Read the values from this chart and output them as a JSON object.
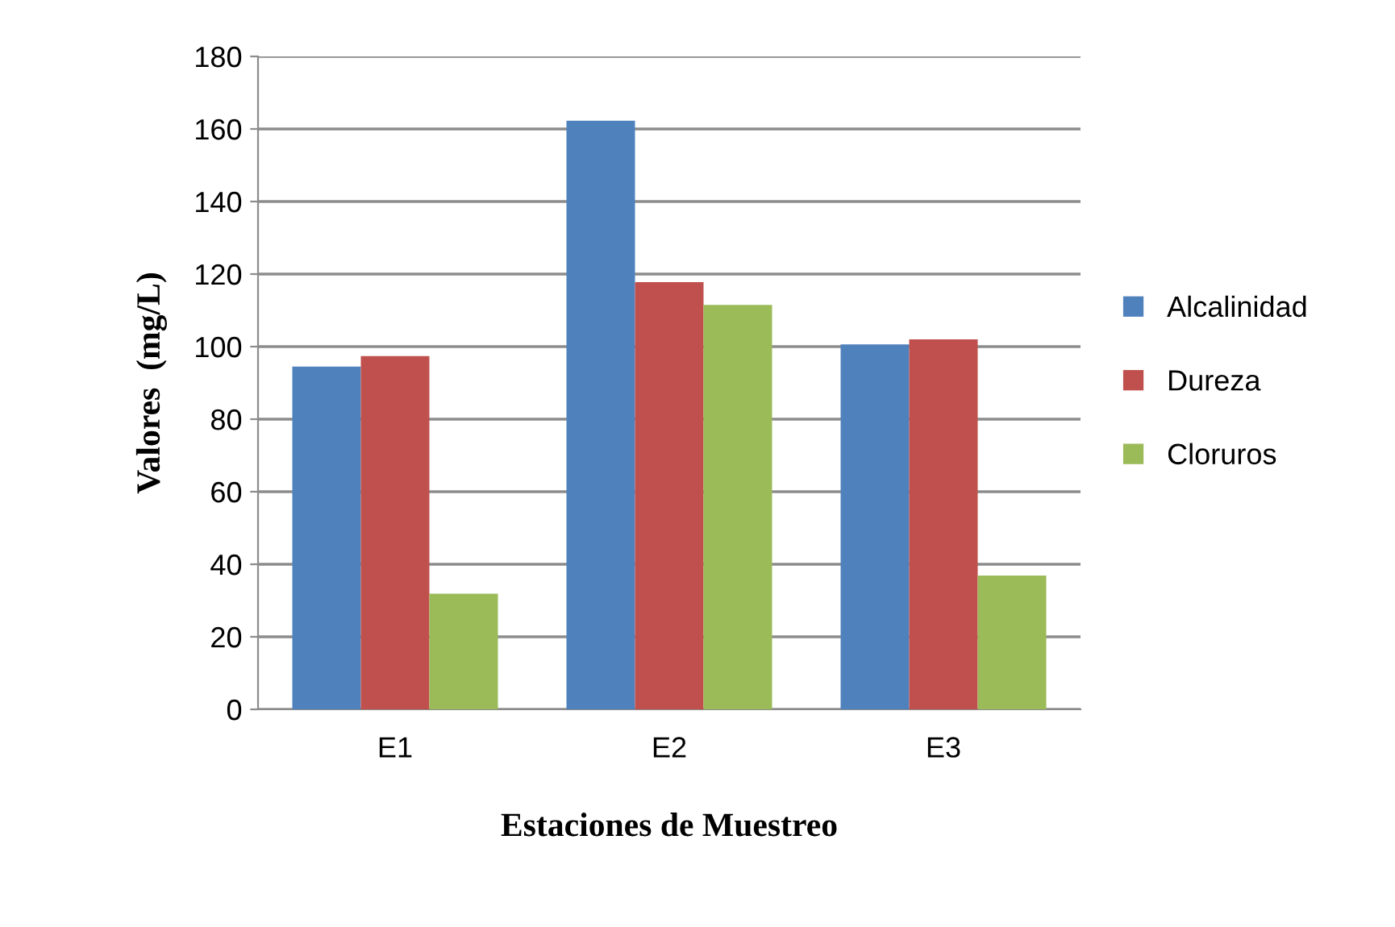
{
  "chart_data": {
    "type": "bar",
    "xlabel": "Estaciones de Muestreo",
    "ylabel": "Valores  (mg/L)",
    "categories": [
      "E1",
      "E2",
      "E3"
    ],
    "series": [
      {
        "name": "Alcalinidad",
        "color": "#4f81bd",
        "values": [
          94.5,
          162.3,
          100.6
        ]
      },
      {
        "name": "Dureza",
        "color": "#c0504d",
        "values": [
          97.4,
          117.8,
          102
        ]
      },
      {
        "name": "Cloruros",
        "color": "#9bbb59",
        "values": [
          31.9,
          111.5,
          36.9
        ]
      }
    ],
    "ylim": [
      0,
      180
    ],
    "yticks": [
      0,
      20,
      40,
      60,
      80,
      100,
      120,
      140,
      160,
      180
    ],
    "grid": "y",
    "legend": "right"
  }
}
